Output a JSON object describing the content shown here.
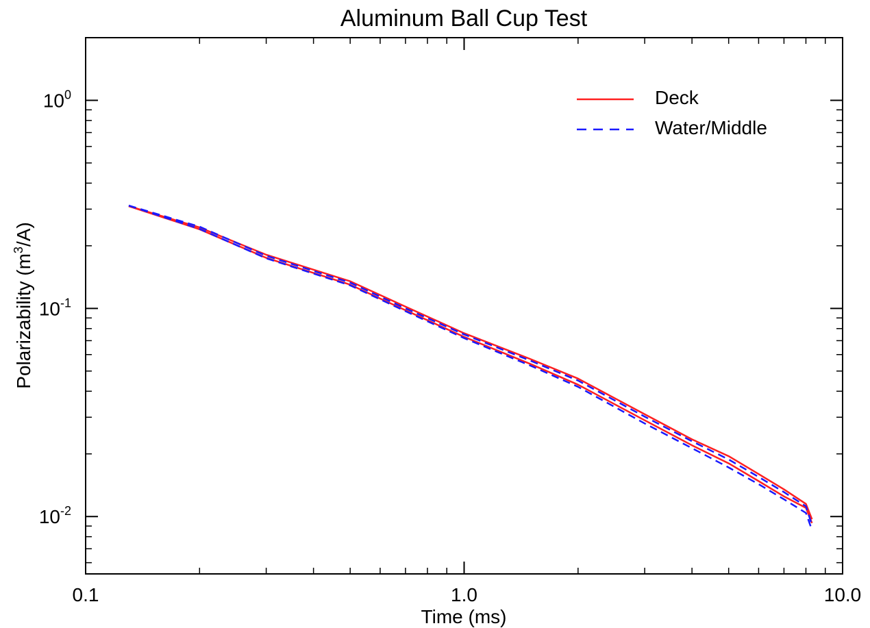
{
  "chart_data": {
    "type": "line",
    "title": "Aluminum Ball Cup Test",
    "xlabel": "Time (ms)",
    "ylabel_main": "Polarizability (m",
    "ylabel_sup": "3",
    "ylabel_end": "/A)",
    "xscale": "log",
    "yscale": "log",
    "xlim": [
      0.1,
      10.0
    ],
    "ylim": [
      0.0053,
      2.0
    ],
    "x_ticks": [
      {
        "value": 0.1,
        "label": "0.1"
      },
      {
        "value": 1.0,
        "label": "1.0"
      },
      {
        "value": 10.0,
        "label": "10.0"
      }
    ],
    "y_ticks": [
      {
        "value": 0.01,
        "base": "10",
        "exp": "-2"
      },
      {
        "value": 0.1,
        "base": "10",
        "exp": "-1"
      },
      {
        "value": 1.0,
        "base": "10",
        "exp": "0"
      }
    ],
    "legend": {
      "placement": "top-right",
      "entries": [
        {
          "label": "Deck",
          "color": "#ff2020",
          "style": "solid"
        },
        {
          "label": "Water/Middle",
          "color": "#1a1aff",
          "style": "dashed"
        }
      ]
    },
    "series": [
      {
        "name": "Deck",
        "color": "#ff2020",
        "style": "solid",
        "x": [
          0.13,
          0.2,
          0.3,
          0.5,
          0.7,
          1.0,
          1.5,
          2.0,
          3.0,
          4.0,
          5.0,
          6.0,
          7.0,
          8.0,
          8.3
        ],
        "y": [
          0.31,
          0.24,
          0.175,
          0.13,
          0.098,
          0.073,
          0.054,
          0.043,
          0.029,
          0.022,
          0.018,
          0.0148,
          0.0125,
          0.011,
          0.0093
        ]
      },
      {
        "name": "Deck",
        "color": "#ff2020",
        "style": "solid",
        "x": [
          0.13,
          0.2,
          0.3,
          0.5,
          0.7,
          1.0,
          1.5,
          2.0,
          3.0,
          4.0,
          5.0,
          6.0,
          7.0,
          8.0,
          8.3
        ],
        "y": [
          0.31,
          0.245,
          0.181,
          0.135,
          0.102,
          0.076,
          0.057,
          0.046,
          0.031,
          0.0235,
          0.0195,
          0.016,
          0.0135,
          0.0115,
          0.0097
        ]
      },
      {
        "name": "Water/Middle",
        "color": "#1a1aff",
        "style": "dashed",
        "x": [
          0.13,
          0.2,
          0.3,
          0.5,
          0.7,
          1.0,
          1.5,
          2.0,
          3.0,
          4.0,
          5.0,
          6.0,
          7.0,
          8.0,
          8.3
        ],
        "y": [
          0.312,
          0.241,
          0.174,
          0.129,
          0.097,
          0.072,
          0.053,
          0.042,
          0.028,
          0.0213,
          0.0172,
          0.0143,
          0.0121,
          0.0104,
          0.0086
        ]
      },
      {
        "name": "Water/Middle",
        "color": "#1a1aff",
        "style": "dashed",
        "x": [
          0.13,
          0.2,
          0.3,
          0.5,
          0.7,
          1.0,
          1.5,
          2.0,
          3.0,
          4.0,
          5.0,
          6.0,
          7.0,
          8.0,
          8.3
        ],
        "y": [
          0.312,
          0.247,
          0.179,
          0.133,
          0.1,
          0.075,
          0.056,
          0.045,
          0.0302,
          0.023,
          0.0188,
          0.0155,
          0.0131,
          0.0112,
          0.0091
        ]
      }
    ]
  }
}
